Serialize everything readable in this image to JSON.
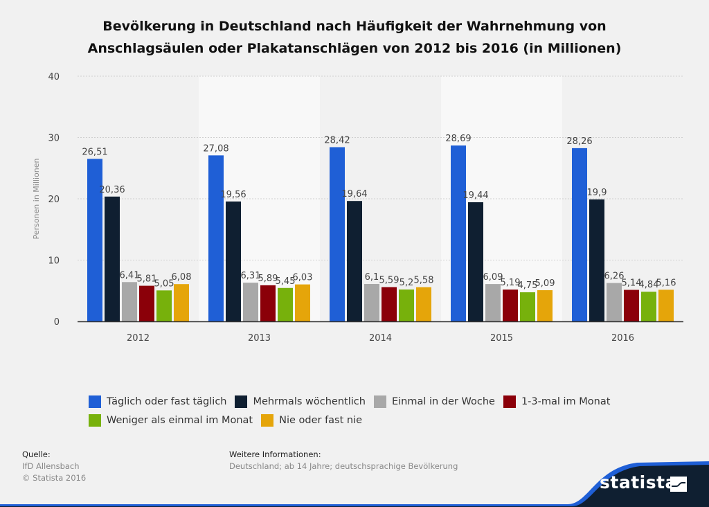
{
  "chart_data": {
    "type": "bar",
    "title": "Bevölkerung in Deutschland nach Häufigkeit der Wahrnehmung von Anschlagsäulen oder Plakatanschlägen von 2012 bis 2016 (in Millionen)",
    "title_lines": [
      "Bevölkerung in Deutschland nach Häufigkeit der Wahrnehmung von",
      "Anschlagsäulen oder Plakatanschlägen von 2012 bis 2016 (in Millionen)"
    ],
    "xlabel": "",
    "ylabel": "Personen in Millionen",
    "ylim": [
      0,
      40
    ],
    "yticks": [
      "0",
      "10",
      "20",
      "30",
      "40"
    ],
    "yticks_values": [
      0,
      10,
      20,
      30,
      40
    ],
    "grid": true,
    "legend_position": "bottom",
    "categories": [
      "2012",
      "2013",
      "2014",
      "2015",
      "2016"
    ],
    "series": [
      {
        "name": "Täglich oder fast täglich",
        "color": "#1f5fd6",
        "values": [
          26.51,
          27.08,
          28.42,
          28.69,
          28.26
        ],
        "labels": [
          "26,51",
          "27,08",
          "28,42",
          "28,69",
          "28,26"
        ]
      },
      {
        "name": "Mehrmals wöchentlich",
        "color": "#0f1f31",
        "values": [
          20.36,
          19.56,
          19.64,
          19.44,
          19.9
        ],
        "labels": [
          "20,36",
          "19,56",
          "19,64",
          "19,44",
          "19,9"
        ]
      },
      {
        "name": "Einmal in der Woche",
        "color": "#a8a8a8",
        "values": [
          6.41,
          6.31,
          6.1,
          6.09,
          6.26
        ],
        "labels": [
          "6,41",
          "6,31",
          "6,1",
          "6,09",
          "6,26"
        ]
      },
      {
        "name": "1-3-mal im Monat",
        "color": "#8b0009",
        "values": [
          5.81,
          5.89,
          5.59,
          5.19,
          5.14
        ],
        "labels": [
          "5,81",
          "5,89",
          "5,59",
          "5,19",
          "5,14"
        ]
      },
      {
        "name": "Weniger als einmal im Monat",
        "color": "#77b10c",
        "values": [
          5.05,
          5.45,
          5.2,
          4.75,
          4.84
        ],
        "labels": [
          "5,05",
          "5,45",
          "5,2",
          "4,75",
          "4,84"
        ]
      },
      {
        "name": "Nie oder fast nie",
        "color": "#e5a50a",
        "values": [
          6.08,
          6.03,
          5.58,
          5.09,
          5.16
        ],
        "labels": [
          "6,08",
          "6,03",
          "5,58",
          "5,09",
          "5,16"
        ]
      }
    ]
  },
  "footer": {
    "source_heading": "Quelle",
    "source_lines": [
      "IfD Allensbach",
      "© Statista 2016"
    ],
    "info_heading": "Weitere Informationen",
    "info_text": "Deutschland; ab 14 Jahre; deutschsprachige Bevölkerung"
  },
  "brand": {
    "name": "statista",
    "dark_color": "#0f1f31",
    "accent_color": "#1f5fd6"
  }
}
